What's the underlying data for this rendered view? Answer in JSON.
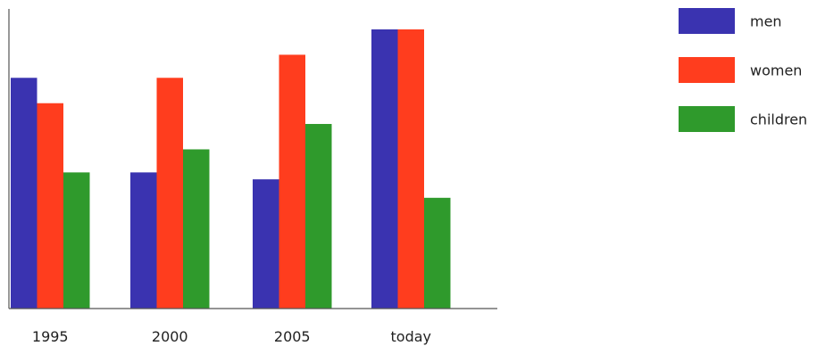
{
  "chart_data": {
    "type": "bar",
    "title": "",
    "xlabel": "",
    "ylabel": "",
    "categories": [
      "1995",
      "2000",
      "2005",
      "today"
    ],
    "series": [
      {
        "name": "men",
        "color": "#3a33b0",
        "values": [
          100,
          59,
          56,
          121
        ]
      },
      {
        "name": "women",
        "color": "#ff3d1e",
        "values": [
          89,
          100,
          110,
          121
        ]
      },
      {
        "name": "children",
        "color": "#2f9a2c",
        "values": [
          59,
          69,
          80,
          48
        ]
      }
    ],
    "ylim": [
      0,
      126
    ],
    "show_y_ticks": false,
    "grid": false,
    "legend_position": "top-right"
  }
}
